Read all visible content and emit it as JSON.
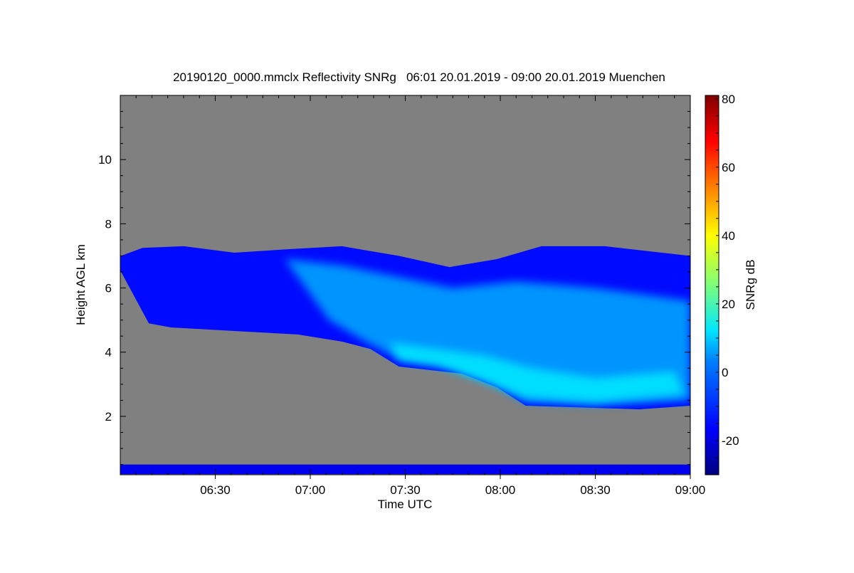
{
  "chart_data": {
    "type": "heatmap",
    "title": "20190120_0000.mmclx Reflectivity SNRg   06:01 20.01.2019 - 09:00 20.01.2019 Muenchen",
    "xlabel": "Time UTC",
    "ylabel": "Height AGL km",
    "colorbar_label": "SNRg dB",
    "x_unit": "minutes after 06:00 UTC",
    "xlim": [
      0,
      180
    ],
    "ylim": [
      0.18,
      12.0
    ],
    "x_ticks": [
      {
        "value": 30,
        "label": "06:30"
      },
      {
        "value": 60,
        "label": "07:00"
      },
      {
        "value": 90,
        "label": "07:30"
      },
      {
        "value": 120,
        "label": "08:00"
      },
      {
        "value": 150,
        "label": "08:30"
      },
      {
        "value": 180,
        "label": "09:00"
      }
    ],
    "y_ticks": [
      {
        "value": 2,
        "label": "2"
      },
      {
        "value": 4,
        "label": "4"
      },
      {
        "value": 6,
        "label": "6"
      },
      {
        "value": 8,
        "label": "8"
      },
      {
        "value": 10,
        "label": "10"
      }
    ],
    "colorbar": {
      "range": [
        -30,
        81
      ],
      "ticks": [
        {
          "value": -20,
          "label": "-20"
        },
        {
          "value": 0,
          "label": "0"
        },
        {
          "value": 20,
          "label": "20"
        },
        {
          "value": 40,
          "label": "40"
        },
        {
          "value": 60,
          "label": "60"
        },
        {
          "value": 80,
          "label": "80"
        }
      ],
      "colormap": "jet"
    },
    "background_color": "#808080",
    "echo_regions": [
      {
        "name": "main-cloud",
        "snr_db": -15,
        "outline": [
          [
            0,
            6.99
          ],
          [
            7,
            7.25
          ],
          [
            20,
            7.3
          ],
          [
            36,
            7.1
          ],
          [
            52,
            7.2
          ],
          [
            70,
            7.3
          ],
          [
            88,
            7.0
          ],
          [
            104,
            6.65
          ],
          [
            119,
            6.9
          ],
          [
            133,
            7.3
          ],
          [
            153,
            7.3
          ],
          [
            180,
            7.0
          ],
          [
            180,
            2.33
          ],
          [
            164,
            2.22
          ],
          [
            128,
            2.33
          ],
          [
            119,
            2.9
          ],
          [
            108,
            3.33
          ],
          [
            88,
            3.55
          ],
          [
            79,
            4.1
          ],
          [
            70,
            4.33
          ],
          [
            56,
            4.55
          ],
          [
            36,
            4.66
          ],
          [
            16,
            4.77
          ],
          [
            9,
            4.9
          ],
          [
            0,
            6.55
          ]
        ]
      },
      {
        "name": "fallstreak-core",
        "snr_db": 0,
        "outline": [
          [
            52,
            6.9
          ],
          [
            70,
            6.7
          ],
          [
            90,
            6.3
          ],
          [
            105,
            6.0
          ],
          [
            125,
            6.2
          ],
          [
            150,
            6.0
          ],
          [
            180,
            5.6
          ],
          [
            180,
            2.5
          ],
          [
            150,
            2.35
          ],
          [
            128,
            2.45
          ],
          [
            118,
            3.0
          ],
          [
            105,
            3.5
          ],
          [
            88,
            3.8
          ],
          [
            78,
            4.3
          ],
          [
            66,
            5.0
          ]
        ]
      },
      {
        "name": "intense-core",
        "snr_db": 8,
        "outline": [
          [
            85,
            4.3
          ],
          [
            100,
            4.1
          ],
          [
            115,
            3.9
          ],
          [
            130,
            3.5
          ],
          [
            150,
            3.2
          ],
          [
            175,
            3.4
          ],
          [
            178,
            2.7
          ],
          [
            150,
            2.45
          ],
          [
            128,
            2.6
          ],
          [
            115,
            3.1
          ],
          [
            100,
            3.6
          ],
          [
            88,
            3.75
          ]
        ]
      },
      {
        "name": "near-surface-layer",
        "snr_db": -18,
        "outline": [
          [
            0,
            0.5
          ],
          [
            180,
            0.5
          ],
          [
            180,
            0.2
          ],
          [
            0,
            0.2
          ]
        ]
      }
    ]
  }
}
